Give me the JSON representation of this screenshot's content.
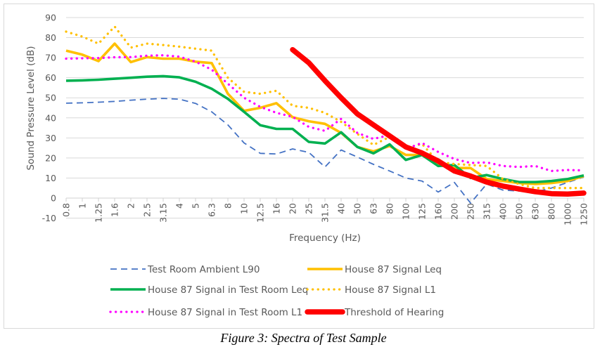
{
  "caption": "Figure 3: Spectra of Test Sample",
  "chart_data": {
    "type": "line",
    "title": "",
    "xlabel": "Frequency (Hz)",
    "ylabel": "Sound Pressure Level (dB)",
    "ylim": [
      -10,
      90
    ],
    "yticks": [
      -10,
      0,
      10,
      20,
      30,
      40,
      50,
      60,
      70,
      80,
      90
    ],
    "grid": true,
    "legend_position": "bottom",
    "categories": [
      "0.8",
      "1",
      "1.25",
      "1.6",
      "2",
      "2.5",
      "3.15",
      "4",
      "5",
      "6.3",
      "8",
      "10",
      "12.5",
      "16",
      "20",
      "25",
      "31.5",
      "40",
      "50",
      "63",
      "80",
      "100",
      "125",
      "160",
      "200",
      "250",
      "315",
      "400",
      "500",
      "630",
      "800",
      "1000",
      "1250"
    ],
    "series": [
      {
        "name": "Test Room Ambient L90",
        "color": "#4472c4",
        "style": "dashed",
        "values": [
          47.3,
          47.5,
          47.8,
          48.2,
          48.8,
          49.3,
          49.7,
          49.3,
          47.2,
          43,
          36.5,
          27.5,
          22.3,
          22,
          24.5,
          22.8,
          15.5,
          24,
          20.5,
          16.8,
          13.5,
          10,
          8.5,
          3,
          7.8,
          -2.5,
          7,
          4,
          3.5,
          3,
          5,
          7.8,
          10.5
        ]
      },
      {
        "name": "House 87 Signal Leq",
        "color": "#ffc000",
        "style": "solid",
        "values": [
          73.5,
          71.5,
          68.3,
          77,
          67.8,
          70.3,
          69.5,
          69.5,
          68,
          67.3,
          52,
          43.5,
          45,
          47.3,
          40.3,
          38.3,
          37,
          32.5,
          25.5,
          23.3,
          26,
          21.5,
          21.5,
          16.5,
          15,
          15,
          9.5,
          8.5,
          7.5,
          7,
          7.5,
          8.5,
          11
        ]
      },
      {
        "name": "House 87 Signal in Test Room Leq",
        "color": "#00b050",
        "style": "solid",
        "values": [
          58.5,
          58.7,
          59,
          59.5,
          60,
          60.5,
          60.8,
          60.2,
          58,
          54.5,
          49.5,
          43,
          36.3,
          34.5,
          34.5,
          28,
          27.2,
          32.8,
          25.5,
          22.3,
          26.8,
          19,
          21.5,
          16,
          16.5,
          10,
          11.5,
          9.5,
          8,
          8,
          8.5,
          9.5,
          11.3
        ]
      },
      {
        "name": "House 87 Signal L1",
        "color": "#ffc000",
        "style": "dotted",
        "values": [
          83,
          80.5,
          77,
          85.5,
          75,
          77,
          76.3,
          75.5,
          74.5,
          73.5,
          60,
          53,
          52,
          53.5,
          46,
          45,
          42.5,
          38,
          32,
          26.5,
          30.5,
          25,
          27,
          18,
          17,
          16.5,
          16,
          9.5,
          7,
          5,
          5,
          5,
          5
        ]
      },
      {
        "name": "House 87 Signal in Test Room L1",
        "color": "#ff00ff",
        "style": "dotted",
        "values": [
          69.5,
          69.7,
          69.8,
          70.2,
          70.3,
          71,
          71.2,
          70.5,
          68,
          64,
          57,
          50,
          45.5,
          42.5,
          40.5,
          35.5,
          33.5,
          39.5,
          32.5,
          29.5,
          31.5,
          24.5,
          27.5,
          23,
          19.5,
          17.5,
          17.8,
          16,
          15.5,
          16,
          13.5,
          14,
          13.8
        ]
      },
      {
        "name": "Threshold of Hearing",
        "color": "#ff0000",
        "style": "thick",
        "values": [
          null,
          null,
          null,
          null,
          null,
          null,
          null,
          null,
          null,
          null,
          null,
          null,
          null,
          null,
          74,
          67.5,
          58.5,
          50,
          42,
          36.5,
          31,
          25.5,
          22.5,
          18.5,
          13.5,
          11,
          8,
          6,
          4.5,
          3.2,
          2.2,
          2,
          2.5
        ]
      }
    ]
  }
}
